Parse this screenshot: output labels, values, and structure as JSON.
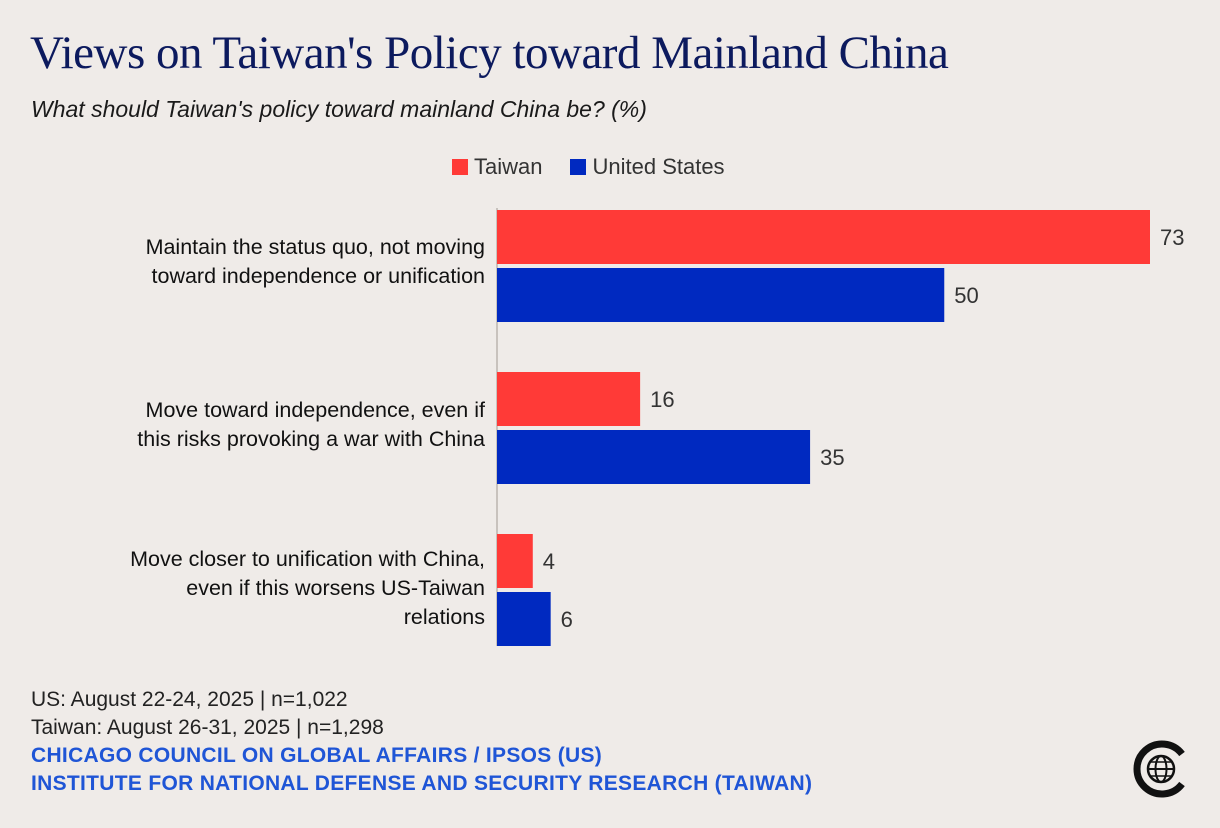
{
  "title": "Views on Taiwan's Policy toward Mainland China",
  "subtitle": "What should Taiwan's policy toward mainland China be? (%)",
  "colors": {
    "taiwan": "#ff3a37",
    "us": "#0029c0",
    "title": "#0c1a5e",
    "source": "#1f55d6"
  },
  "chart_data": {
    "type": "bar",
    "orientation": "horizontal",
    "title": "Views on Taiwan's Policy toward Mainland China",
    "subtitle": "What should Taiwan's policy toward mainland China be? (%)",
    "categories": [
      "Maintain the status quo, not moving\ntoward independence or unification",
      "Move toward independence, even if\nthis risks provoking a war with China",
      "Move closer to unification with China,\neven if this worsens US-Taiwan\nrelations"
    ],
    "series": [
      {
        "name": "Taiwan",
        "values": [
          73,
          16,
          4
        ]
      },
      {
        "name": "United States",
        "values": [
          50,
          35,
          6
        ]
      }
    ],
    "xlim": [
      0,
      73
    ],
    "legend": "top-center",
    "grid": false
  },
  "footer": {
    "line1": "US: August 22-24, 2025 | n=1,022",
    "line2": "Taiwan: August 26-31, 2025 | n=1,298",
    "source1": "CHICAGO COUNCIL ON GLOBAL AFFAIRS / IPSOS (US)",
    "source2": "INSTITUTE FOR NATIONAL DEFENSE AND SECURITY RESEARCH (TAIWAN)"
  },
  "logo_icon": "globe-c-logo-icon"
}
